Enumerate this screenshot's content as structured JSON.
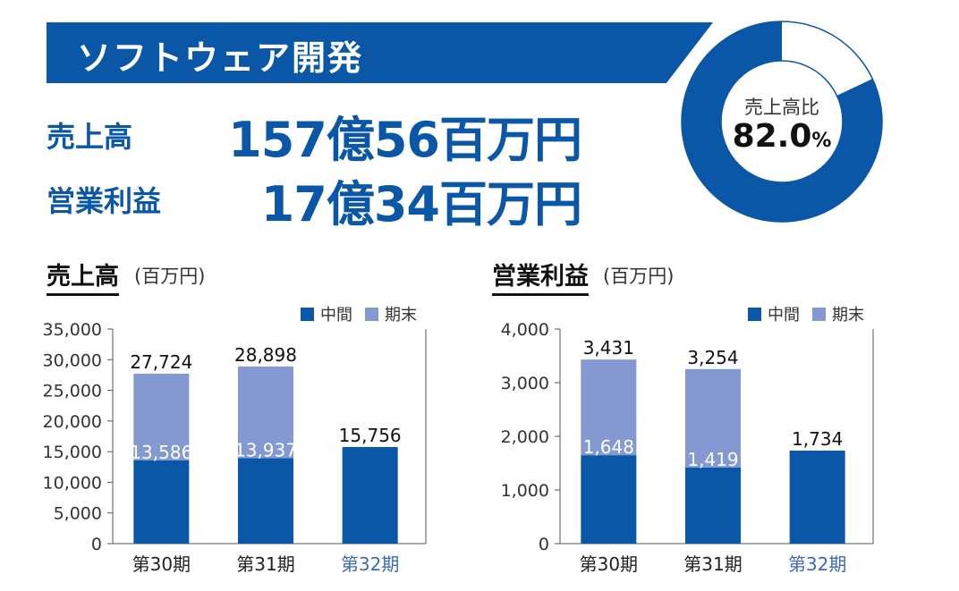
{
  "header": {
    "title": "ソフトウェア開発"
  },
  "kpis": [
    {
      "label": "売上高",
      "value": "157億56百万円"
    },
    {
      "label": "営業利益",
      "value": "17億34百万円"
    }
  ],
  "donut": {
    "label": "売上高比",
    "value": "82.0",
    "unit": "%",
    "fraction": 0.82,
    "color": "#0a57a8"
  },
  "colors": {
    "interim": "#0a57a8",
    "yearend": "#8499d2",
    "highlight": "#3d6ab5"
  },
  "chart_data": [
    {
      "type": "bar",
      "stacked": true,
      "title": "売上高",
      "unit": "(百万円)",
      "categories": [
        "第30期",
        "第31期",
        "第32期"
      ],
      "legend": [
        "中間",
        "期末"
      ],
      "series": [
        {
          "name": "中間",
          "values": [
            13586,
            13937,
            15756
          ]
        },
        {
          "name": "期末",
          "values": [
            14138,
            14961,
            0
          ]
        }
      ],
      "total_labels": [
        "27,724",
        "28,898",
        "15,756"
      ],
      "interim_labels": [
        "13,586",
        "13,937",
        ""
      ],
      "ylim": [
        0,
        35000
      ],
      "yticks": [
        0,
        5000,
        10000,
        15000,
        20000,
        25000,
        30000,
        35000
      ],
      "ytick_labels": [
        "0",
        "5,000",
        "10,000",
        "15,000",
        "20,000",
        "25,000",
        "30,000",
        "35,000"
      ],
      "highlight_category": "第32期",
      "legend_position": "top-right"
    },
    {
      "type": "bar",
      "stacked": true,
      "title": "営業利益",
      "unit": "(百万円)",
      "categories": [
        "第30期",
        "第31期",
        "第32期"
      ],
      "legend": [
        "中間",
        "期末"
      ],
      "series": [
        {
          "name": "中間",
          "values": [
            1648,
            1419,
            1734
          ]
        },
        {
          "name": "期末",
          "values": [
            1783,
            1835,
            0
          ]
        }
      ],
      "total_labels": [
        "3,431",
        "3,254",
        "1,734"
      ],
      "interim_labels": [
        "1,648",
        "1,419",
        ""
      ],
      "ylim": [
        0,
        4000
      ],
      "yticks": [
        0,
        1000,
        2000,
        3000,
        4000
      ],
      "ytick_labels": [
        "0",
        "1,000",
        "2,000",
        "3,000",
        "4,000"
      ],
      "highlight_category": "第32期",
      "legend_position": "top-right"
    }
  ]
}
